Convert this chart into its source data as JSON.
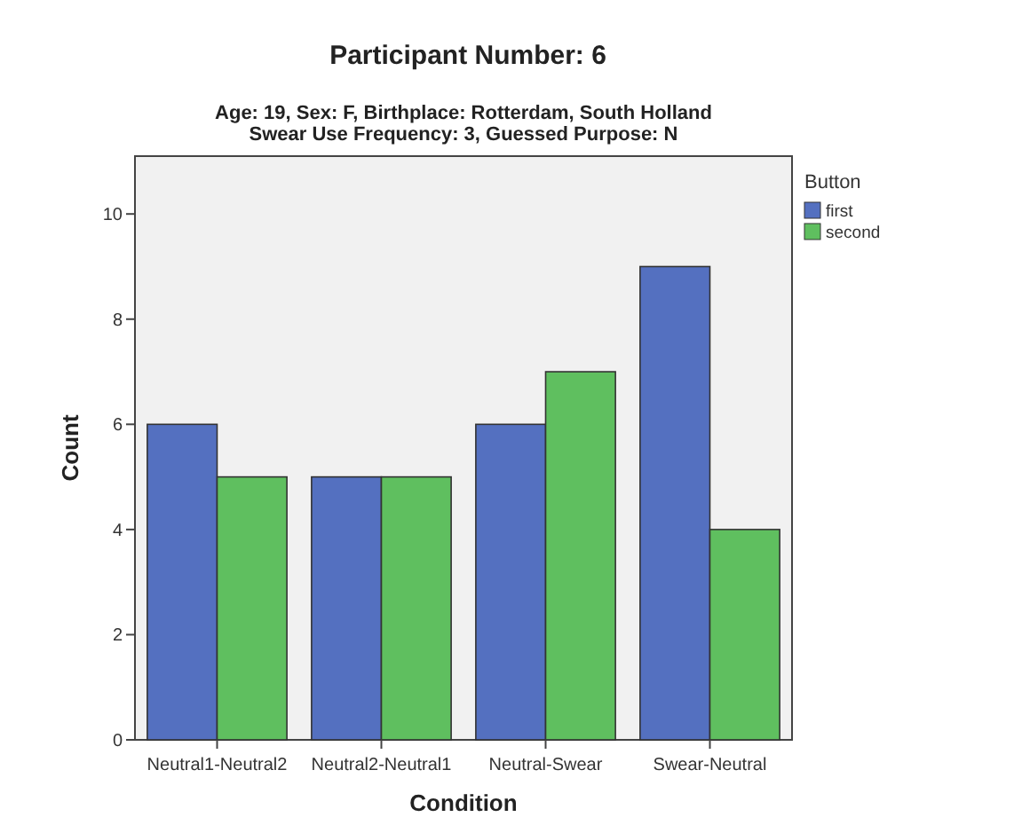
{
  "chart_data": {
    "type": "bar",
    "title": "Participant Number: 6",
    "subtitle": "Age: 19, Sex: F, Birthplace: Rotterdam, South Holland\nSwear Use Frequency: 3, Guessed Purpose: N",
    "xlabel": "Condition",
    "ylabel": "Count",
    "legend_title": "Button",
    "legend": "right",
    "categories": [
      "Neutral1-Neutral2",
      "Neutral2-Neutral1",
      "Neutral-Swear",
      "Swear-Neutral"
    ],
    "series": [
      {
        "name": "first",
        "color": "#5470c0",
        "values": [
          6,
          5,
          6,
          9
        ]
      },
      {
        "name": "second",
        "color": "#5fbf5f",
        "values": [
          5,
          5,
          7,
          4
        ]
      }
    ],
    "ylim": [
      0,
      11.1
    ],
    "yticks": [
      0,
      2,
      4,
      6,
      8,
      10
    ],
    "grid": false
  }
}
